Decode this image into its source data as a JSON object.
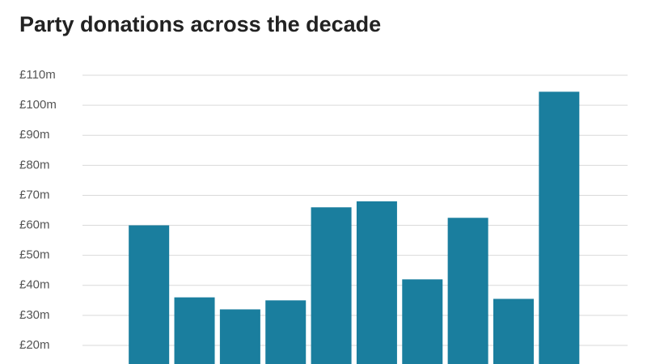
{
  "chart_data": {
    "type": "bar",
    "title": "Party donations across the decade",
    "categories": [
      null,
      null,
      null,
      null,
      null,
      null,
      null,
      null,
      null,
      null
    ],
    "values": [
      60,
      36,
      32,
      35,
      66,
      68,
      42,
      62.5,
      35.5,
      104.5
    ],
    "color": "#1a7e9e",
    "ylim": [
      13.8,
      110
    ],
    "yticks": [
      {
        "value": 20,
        "label": "£20m"
      },
      {
        "value": 30,
        "label": "£30m"
      },
      {
        "value": 40,
        "label": "£40m"
      },
      {
        "value": 50,
        "label": "£50m"
      },
      {
        "value": 60,
        "label": "£60m"
      },
      {
        "value": 70,
        "label": "£70m"
      },
      {
        "value": 80,
        "label": "£80m"
      },
      {
        "value": 90,
        "label": "£90m"
      },
      {
        "value": 100,
        "label": "£100m"
      },
      {
        "value": 110,
        "label": "£110m"
      }
    ],
    "grid": true
  }
}
